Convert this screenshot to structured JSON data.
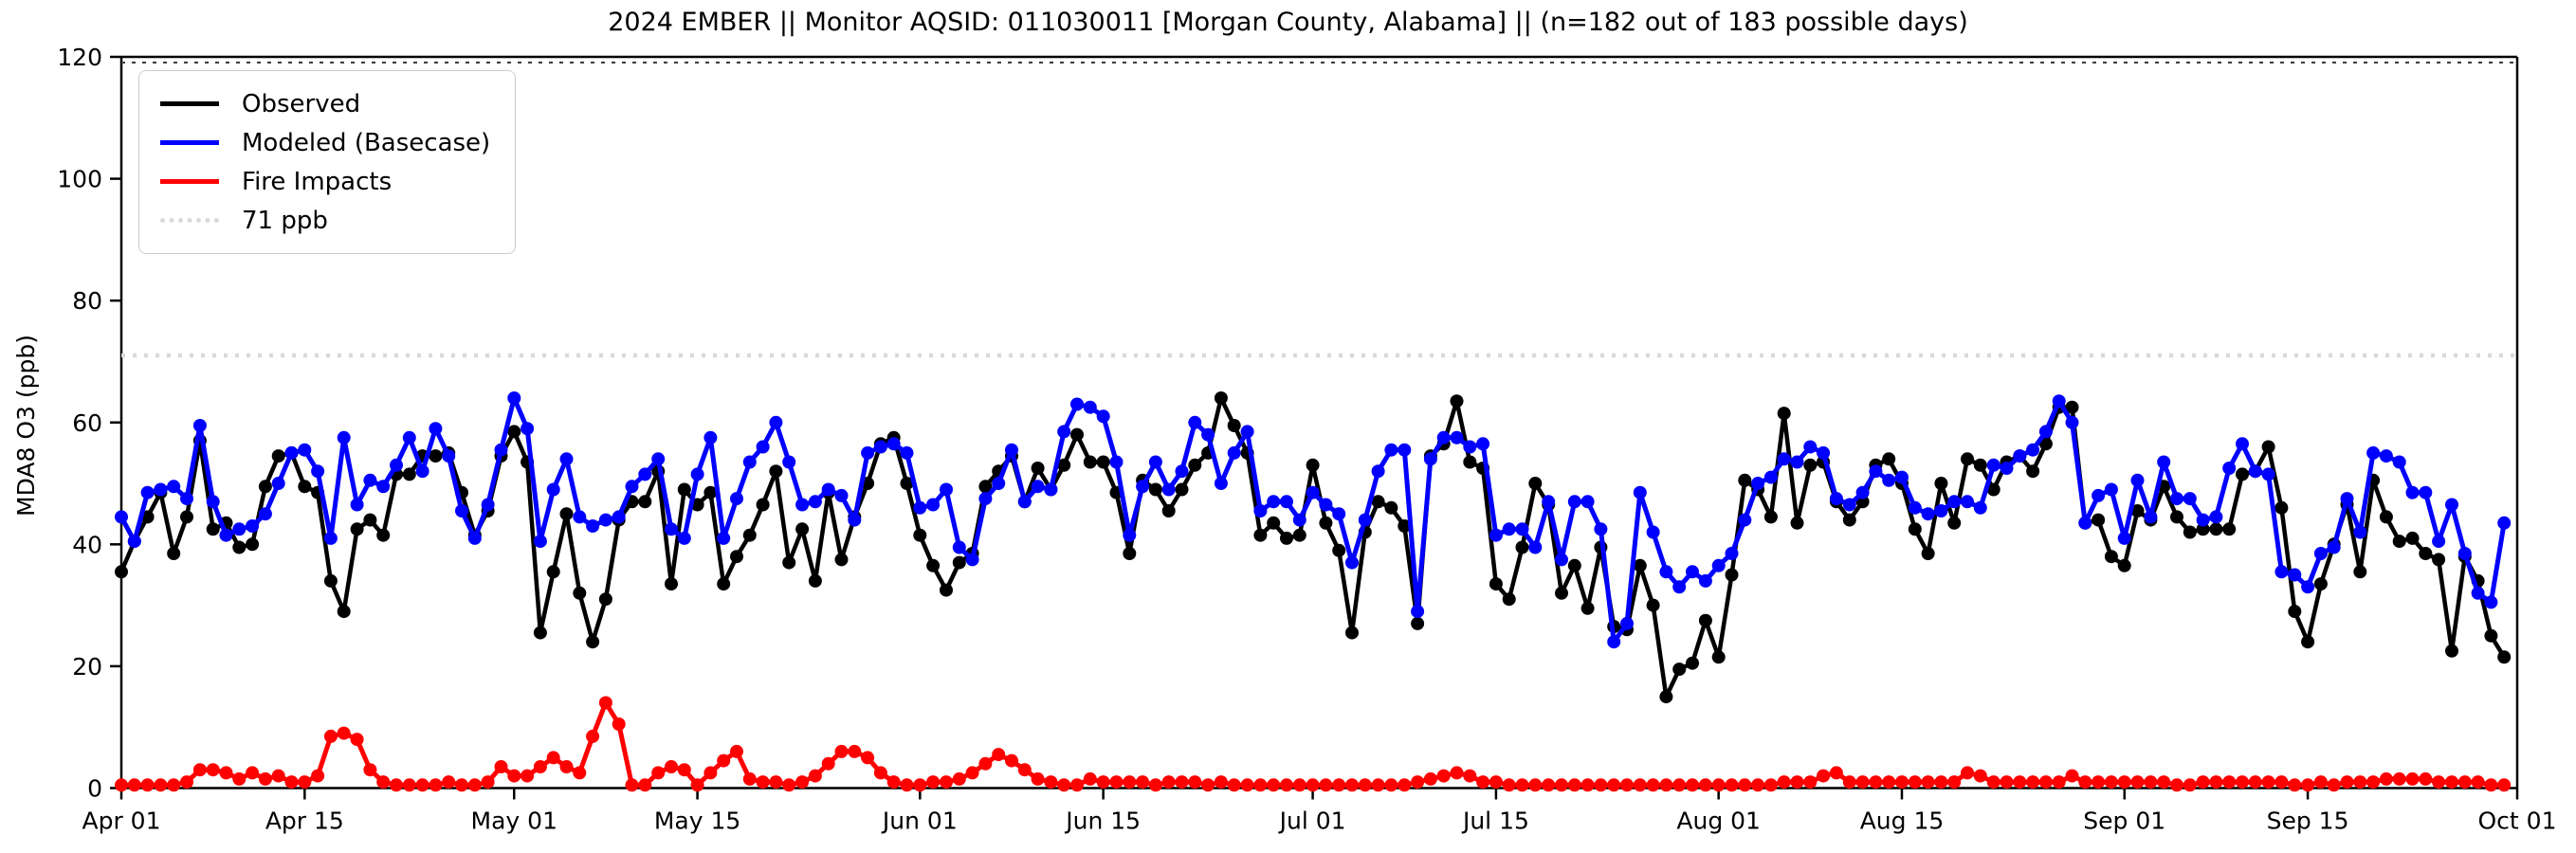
{
  "chart_data": {
    "type": "line",
    "title": "2024 EMBER || Monitor AQSID: 011030011 [Morgan County, Alabama] || (n=182 out of 183 possible days)",
    "xlabel": "",
    "ylabel": "MDA8 O3 (ppb)",
    "ylim": [
      0,
      120
    ],
    "yticks": [
      0,
      20,
      40,
      60,
      80,
      100,
      120
    ],
    "x_days_span": 183,
    "x_unit": "day",
    "x_start_label": "Apr 01",
    "x_end_label": "Oct 01",
    "x_tick_labels": [
      "Apr 01",
      "Apr 15",
      "May 01",
      "May 15",
      "Jun 01",
      "Jun 15",
      "Jul 01",
      "Jul 15",
      "Aug 01",
      "Aug 15",
      "Sep 01",
      "Sep 15",
      "Oct 01"
    ],
    "x_tick_day_index": [
      0,
      14,
      30,
      44,
      61,
      75,
      91,
      105,
      122,
      136,
      153,
      167,
      183
    ],
    "grid": false,
    "legend_position": "upper left",
    "threshold": {
      "label": "71 ppb",
      "value": 71,
      "color": "#d9d9d9",
      "style": "dotted"
    },
    "series": [
      {
        "name": "Observed",
        "color": "#000000",
        "values": [
          35.5,
          40.5,
          44.5,
          48.5,
          38.5,
          44.5,
          57,
          42.5,
          43.5,
          39.5,
          40,
          49.5,
          54.5,
          55,
          49.5,
          48.5,
          34,
          29,
          42.5,
          44,
          41.5,
          51.5,
          51.5,
          54.5,
          54.5,
          55,
          48.5,
          41.5,
          45.5,
          54.5,
          58.5,
          53.5,
          25.5,
          35.5,
          45,
          32,
          24,
          31,
          44,
          47,
          47,
          52,
          33.5,
          49,
          46.5,
          48.5,
          33.5,
          38,
          41.5,
          46.5,
          52,
          37,
          42.5,
          34,
          48.5,
          37.5,
          44.5,
          50,
          56.5,
          57.5,
          50,
          41.5,
          36.5,
          32.5,
          37,
          38.5,
          49.5,
          52,
          54.5,
          47,
          52.5,
          49,
          53,
          58,
          53.5,
          53.5,
          48.5,
          38.5,
          50.5,
          49,
          45.5,
          49,
          53,
          55,
          64,
          59.5,
          55,
          41.5,
          43.5,
          41,
          41.5,
          53,
          43.5,
          39,
          25.5,
          42,
          47,
          46,
          43,
          27,
          54.5,
          56.5,
          63.5,
          53.5,
          52.5,
          33.5,
          31,
          39.5,
          50,
          46.5,
          32,
          36.5,
          29.5,
          39.5,
          26.5,
          26,
          36.5,
          30,
          15,
          19.5,
          20.5,
          27.5,
          21.5,
          35,
          50.5,
          49,
          44.5,
          61.5,
          43.5,
          53,
          53.5,
          47,
          44,
          47,
          53,
          54,
          50,
          42.5,
          38.5,
          50,
          43.5,
          54,
          53,
          49,
          53.5,
          54.5,
          52,
          56.5,
          62.5,
          62.5,
          43.5,
          44,
          38,
          36.5,
          45.5,
          44,
          49.5,
          44.5,
          42,
          42.5,
          42.5,
          42.5,
          51.5,
          52,
          56,
          46,
          29,
          24,
          33.5,
          40,
          46.5,
          35.5,
          50.5,
          44.5,
          40.5,
          41,
          38.5,
          37.5,
          22.5,
          38,
          34,
          25,
          21.5
        ]
      },
      {
        "name": "Modeled (Basecase)",
        "color": "#0000ff",
        "values": [
          44.5,
          40.5,
          48.5,
          49,
          49.5,
          47.5,
          59.5,
          47,
          41.5,
          42.5,
          43,
          45,
          50,
          55,
          55.5,
          52,
          41,
          57.5,
          46.5,
          50.5,
          49.5,
          53,
          57.5,
          52,
          59,
          54.5,
          45.5,
          41,
          46.5,
          55.5,
          64,
          59,
          40.5,
          49,
          54,
          44.5,
          43,
          44,
          44.5,
          49.5,
          51.5,
          54,
          42.5,
          41,
          51.5,
          57.5,
          41,
          47.5,
          53.5,
          56,
          60,
          53.5,
          46.5,
          47,
          49,
          48,
          44,
          55,
          56,
          56.5,
          55,
          46,
          46.5,
          49,
          39.5,
          37.5,
          47.5,
          50,
          55.5,
          47,
          49.5,
          49,
          58.5,
          63,
          62.5,
          61,
          53.5,
          41.5,
          49.5,
          53.5,
          49,
          52,
          60,
          58,
          50,
          55,
          58.5,
          45.5,
          47,
          47,
          44,
          48.5,
          46.5,
          45,
          37,
          44,
          52,
          55.5,
          55.5,
          29,
          54,
          57.5,
          57.5,
          56,
          56.5,
          41.5,
          42.5,
          42.5,
          39.5,
          47,
          37.5,
          47,
          47,
          42.5,
          24,
          27,
          48.5,
          42,
          35.5,
          33,
          35.5,
          34,
          36.5,
          38.5,
          44,
          50,
          51,
          54,
          53.5,
          56,
          55,
          47.5,
          46.5,
          48.5,
          52,
          50.5,
          51,
          46,
          45,
          45.5,
          47,
          47,
          46,
          53,
          52.5,
          54.5,
          55.5,
          58.5,
          63.5,
          60,
          43.5,
          48,
          49,
          41,
          50.5,
          44.5,
          53.5,
          47.5,
          47.5,
          44,
          44.5,
          52.5,
          56.5,
          52,
          51.5,
          35.5,
          35,
          33,
          38.5,
          39.5,
          47.5,
          42,
          55,
          54.5,
          53.5,
          48.5,
          48.5,
          40.5,
          46.5,
          38.5,
          32,
          30.5,
          43.5
        ]
      },
      {
        "name": "Fire Impacts",
        "color": "#ff0000",
        "values": [
          0.5,
          0.5,
          0.5,
          0.5,
          0.5,
          1,
          3,
          3,
          2.5,
          1.5,
          2.5,
          1.5,
          2,
          1,
          1,
          2,
          8.5,
          9,
          8,
          3,
          1,
          0.5,
          0.5,
          0.5,
          0.5,
          1,
          0.5,
          0.5,
          1,
          3.5,
          2,
          2,
          3.5,
          5,
          3.5,
          2.5,
          8.5,
          14,
          10.5,
          0.5,
          0.5,
          2.5,
          3.5,
          3,
          0.5,
          2.5,
          4.5,
          6,
          1.5,
          1,
          1,
          0.5,
          1,
          2,
          4,
          6,
          6,
          5,
          2.5,
          1,
          0.5,
          0.5,
          1,
          1,
          1.5,
          2.5,
          4,
          5.5,
          4.5,
          3,
          1.5,
          1,
          0.5,
          0.5,
          1.5,
          1,
          1,
          1,
          1,
          0.5,
          1,
          1,
          1,
          0.5,
          1,
          0.5,
          0.5,
          0.5,
          0.5,
          0.5,
          0.5,
          0.5,
          0.5,
          0.5,
          0.5,
          0.5,
          0.5,
          0.5,
          0.5,
          1,
          1.5,
          2,
          2.5,
          2,
          1,
          1,
          0.5,
          0.5,
          0.5,
          0.5,
          0.5,
          0.5,
          0.5,
          0.5,
          0.5,
          0.5,
          0.5,
          0.5,
          0.5,
          0.5,
          0.5,
          0.5,
          0.5,
          0.5,
          0.5,
          0.5,
          0.5,
          1,
          1,
          1,
          2,
          2.5,
          1,
          1,
          1,
          1,
          1,
          1,
          1,
          1,
          1,
          2.5,
          2,
          1,
          1,
          1,
          1,
          1,
          1,
          2,
          1,
          1,
          1,
          1,
          1,
          1,
          1,
          0.5,
          0.5,
          1,
          1,
          1,
          1,
          1,
          1,
          1,
          0.5,
          0.5,
          1,
          0.5,
          1,
          1,
          1,
          1.5,
          1.5,
          1.5,
          1.5,
          1,
          1,
          1,
          1,
          0.5,
          0.5
        ]
      }
    ]
  }
}
